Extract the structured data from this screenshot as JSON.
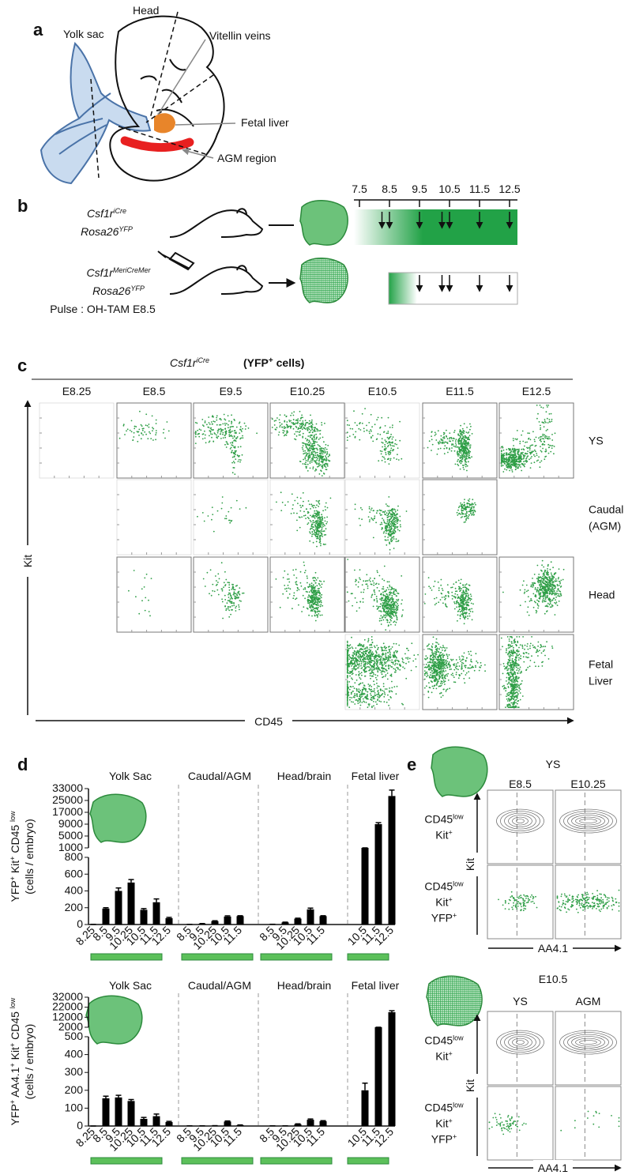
{
  "panel_a": {
    "letter": "a",
    "labels": {
      "yolk_sac": "Yolk sac",
      "head": "Head",
      "vitellin_veins": "Vitellin veins",
      "fetal_liver": "Fetal liver",
      "agm_region": "AGM region"
    }
  },
  "panel_b": {
    "letter": "b",
    "timeline": {
      "ticks": [
        7.5,
        8.5,
        9.5,
        10.5,
        11.5,
        12.5
      ]
    },
    "rows": [
      {
        "genotype": [
          [
            "Csf1r",
            "iCre"
          ],
          [
            "Rosa26",
            "YFP"
          ]
        ],
        "arrows": [
          8.25,
          8.5,
          9.5,
          10.25,
          10.5,
          11.5,
          12.5
        ]
      },
      {
        "genotype": [
          [
            "Csf1r",
            "MeriCreMer"
          ],
          [
            "Rosa26",
            "YFP"
          ]
        ],
        "pulse": "Pulse : OH-TAM E8.5",
        "arrows": [
          9.5,
          10.25,
          10.5,
          11.5,
          12.5
        ]
      }
    ]
  },
  "panel_c": {
    "letter": "c",
    "title": [
      "Csf1r",
      "iCre"
    ],
    "subtitle": {
      "pre": "(YFP",
      "sup": "+",
      "post": " cells)"
    },
    "columns": [
      "E8.25",
      "E8.5",
      "E9.5",
      "E10.25",
      "E10.5",
      "E11.5",
      "E12.5"
    ],
    "rows": [
      [
        "YS"
      ],
      [
        "Caudal",
        "(AGM)"
      ],
      [
        "Head"
      ],
      [
        "Fetal",
        "Liver"
      ]
    ],
    "x_axis": "CD45",
    "y_axis": "Kit"
  },
  "panel_d": {
    "letter": "d",
    "charts": [
      {
        "type": "bar",
        "color": "#000000",
        "y_label": [
          [
            "YFP",
            "+"
          ],
          [
            " Kit",
            "+"
          ],
          [
            " CD45 ",
            "low"
          ]
        ],
        "y_label_2": "(cells / embryo)",
        "ylim_lower": [
          0,
          800
        ],
        "yticks_lower": [
          0,
          200,
          400,
          600,
          800
        ],
        "yticks_upper": [
          1000,
          5000,
          9000,
          17000,
          25000,
          33000
        ],
        "groups": [
          {
            "name": "Yolk Sac",
            "categories": [
              "8.25",
              "8.5",
              "9.5",
              "10.25",
              "10.5",
              "11.5",
              "12.5"
            ],
            "values": [
              2,
              190,
              400,
              500,
              175,
              265,
              75
            ],
            "errors": [
              0,
              10,
              35,
              35,
              15,
              40,
              10
            ]
          },
          {
            "name": "Caudal/AGM",
            "categories": [
              "8.5",
              "9.5",
              "10.25",
              "10.5",
              "11.5"
            ],
            "values": [
              2,
              10,
              40,
              95,
              100
            ],
            "errors": [
              0,
              2,
              5,
              8,
              5
            ]
          },
          {
            "name": "Head/brain",
            "categories": [
              "8.5",
              "9.5",
              "10.25",
              "10.5",
              "11.5"
            ],
            "values": [
              3,
              25,
              70,
              180,
              100
            ],
            "errors": [
              0,
              3,
              5,
              15,
              5
            ]
          },
          {
            "name": "Fetal liver",
            "categories": [
              "10.5",
              "11.5",
              "12.5"
            ],
            "values": [
              1000,
              9000,
              28000
            ],
            "errors": [
              0,
              1000,
              4000
            ]
          }
        ]
      },
      {
        "type": "bar",
        "color": "#000000",
        "y_label": [
          [
            "YFP",
            "+"
          ],
          [
            " AA4.1",
            "+"
          ],
          [
            " Kit",
            "+"
          ],
          [
            " CD45 ",
            "low"
          ]
        ],
        "y_label_2": "(cells / embryo)",
        "ylim_lower": [
          0,
          500
        ],
        "yticks_lower": [
          0,
          100,
          200,
          300,
          400,
          500
        ],
        "yticks_upper": [
          2000,
          12000,
          22000,
          32000
        ],
        "groups": [
          {
            "name": "Yolk Sac",
            "categories": [
              "8.25",
              "8.5",
              "9.5",
              "10.25",
              "10.5",
              "11.5",
              "12.5"
            ],
            "values": [
              0,
              155,
              160,
              140,
              40,
              55,
              22
            ],
            "errors": [
              0,
              12,
              12,
              8,
              8,
              12,
              4
            ]
          },
          {
            "name": "Caudal/AGM",
            "categories": [
              "8.5",
              "9.5",
              "10.25",
              "10.5",
              "11.5"
            ],
            "values": [
              1,
              1,
              2,
              25,
              5
            ],
            "errors": [
              0,
              0,
              0,
              3,
              1
            ]
          },
          {
            "name": "Head/brain",
            "categories": [
              "8.5",
              "9.5",
              "10.25",
              "10.5",
              "11.5"
            ],
            "values": [
              1,
              1,
              10,
              35,
              27
            ],
            "errors": [
              0,
              0,
              2,
              4,
              3
            ]
          },
          {
            "name": "Fetal liver",
            "categories": [
              "10.5",
              "11.5",
              "12.5"
            ],
            "values": [
              200,
              2000,
              17000
            ],
            "errors": [
              40,
              0,
              1500
            ]
          }
        ]
      }
    ]
  },
  "panel_e": {
    "letter": "e",
    "top": {
      "title": "YS",
      "columns": [
        "E8.5",
        "E10.25"
      ]
    },
    "bottom": {
      "title": "E10.5",
      "columns": [
        "YS",
        "AGM"
      ]
    },
    "row_labels": [
      [
        [
          "CD45",
          "low"
        ],
        [
          "Kit",
          "+"
        ]
      ],
      [
        [
          "CD45",
          "low"
        ],
        [
          "Kit",
          "+"
        ],
        [
          "YFP",
          "+"
        ]
      ]
    ],
    "y_axis": "Kit",
    "x_axis": "AA4.1"
  }
}
